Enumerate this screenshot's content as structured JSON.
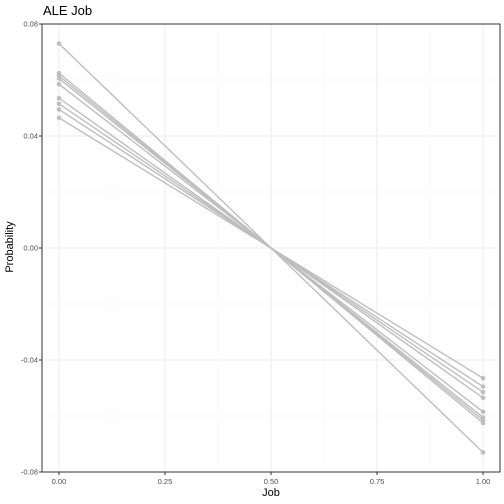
{
  "chart_data": {
    "type": "line",
    "title": "ALE Job",
    "xlabel": "Job",
    "ylabel": "Probability",
    "xlim": [
      -0.04,
      1.04
    ],
    "ylim": [
      -0.08,
      0.08
    ],
    "x_ticks": [
      0.0,
      0.25,
      0.5,
      0.75,
      1.0
    ],
    "x_tick_labels": [
      "0.00",
      "0.25",
      "0.50",
      "0.75",
      "1.00"
    ],
    "y_ticks": [
      -0.08,
      -0.04,
      0.0,
      0.04,
      0.08
    ],
    "y_tick_labels": [
      "-0.08",
      "-0.04",
      "0.00",
      "0.04",
      "0.08"
    ],
    "grid": true,
    "legend": "none",
    "colors": {
      "series": "#bebebe",
      "grid_major": "#ebebeb",
      "grid_minor": "#f5f5f5",
      "border": "#333333"
    },
    "x": [
      0,
      0.5,
      1
    ],
    "series": [
      {
        "values": [
          0.073,
          0.0,
          -0.073
        ]
      },
      {
        "values": [
          0.0625,
          0.0,
          -0.0625
        ]
      },
      {
        "values": [
          0.0615,
          0.0,
          -0.0615
        ]
      },
      {
        "values": [
          0.0605,
          0.0,
          -0.0605
        ]
      },
      {
        "values": [
          0.0585,
          0.0,
          -0.0585
        ]
      },
      {
        "values": [
          0.0535,
          0.0,
          -0.0535
        ]
      },
      {
        "values": [
          0.0515,
          0.0,
          -0.0515
        ]
      },
      {
        "values": [
          0.0495,
          0.0,
          -0.0495
        ]
      },
      {
        "values": [
          0.0465,
          0.0,
          -0.0465
        ]
      }
    ]
  }
}
